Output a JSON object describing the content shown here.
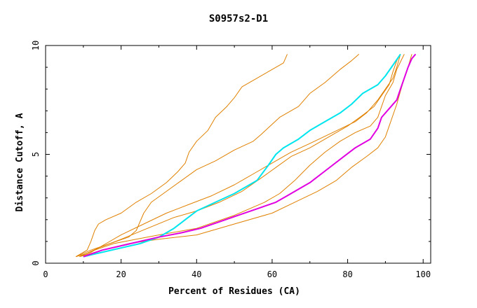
{
  "chart_data": {
    "type": "line",
    "title": "S0957s2-D1",
    "xlabel": "Percent of Residues (CA)",
    "ylabel": "Distance Cutoff, A",
    "xlim": [
      0,
      102
    ],
    "ylim": [
      0,
      10
    ],
    "xticks": [
      0,
      20,
      40,
      60,
      80,
      100
    ],
    "yticks": [
      0,
      5,
      10
    ],
    "colors": {
      "orange": "#e08000",
      "cyan": "#00e5ee",
      "magenta": "#e000e0",
      "axes": "#000000"
    },
    "series": [
      {
        "name": "orange-1",
        "color": "#e08000",
        "width": 1,
        "points": [
          [
            8,
            0.3
          ],
          [
            11,
            0.6
          ],
          [
            12,
            1.0
          ],
          [
            13,
            1.5
          ],
          [
            14,
            1.8
          ],
          [
            16,
            2.0
          ],
          [
            20,
            2.3
          ],
          [
            24,
            2.8
          ],
          [
            28,
            3.2
          ],
          [
            32,
            3.7
          ],
          [
            35,
            4.2
          ],
          [
            37,
            4.6
          ],
          [
            38,
            5.1
          ],
          [
            40,
            5.6
          ],
          [
            43,
            6.1
          ],
          [
            45,
            6.7
          ],
          [
            48,
            7.2
          ],
          [
            50,
            7.6
          ],
          [
            52,
            8.1
          ],
          [
            56,
            8.5
          ],
          [
            59,
            8.8
          ],
          [
            63,
            9.2
          ],
          [
            64,
            9.6
          ]
        ]
      },
      {
        "name": "orange-2",
        "color": "#e08000",
        "width": 1,
        "points": [
          [
            8,
            0.3
          ],
          [
            12,
            0.6
          ],
          [
            17,
            0.9
          ],
          [
            22,
            1.2
          ],
          [
            24,
            1.5
          ],
          [
            26,
            2.3
          ],
          [
            28,
            2.8
          ],
          [
            32,
            3.3
          ],
          [
            36,
            3.8
          ],
          [
            40,
            4.3
          ],
          [
            45,
            4.7
          ],
          [
            50,
            5.2
          ],
          [
            55,
            5.6
          ],
          [
            57,
            5.9
          ],
          [
            62,
            6.7
          ],
          [
            67,
            7.2
          ],
          [
            70,
            7.8
          ],
          [
            74,
            8.3
          ],
          [
            78,
            8.9
          ],
          [
            81,
            9.3
          ],
          [
            83,
            9.6
          ]
        ]
      },
      {
        "name": "orange-3",
        "color": "#e08000",
        "width": 1,
        "points": [
          [
            8,
            0.3
          ],
          [
            12,
            0.5
          ],
          [
            16,
            0.9
          ],
          [
            20,
            1.3
          ],
          [
            26,
            1.8
          ],
          [
            32,
            2.3
          ],
          [
            38,
            2.7
          ],
          [
            44,
            3.1
          ],
          [
            50,
            3.6
          ],
          [
            55,
            4.1
          ],
          [
            60,
            4.6
          ],
          [
            65,
            5.1
          ],
          [
            70,
            5.5
          ],
          [
            76,
            6.0
          ],
          [
            82,
            6.5
          ],
          [
            85,
            6.9
          ],
          [
            88,
            7.5
          ],
          [
            90,
            8.0
          ],
          [
            92,
            8.5
          ],
          [
            93,
            9.0
          ],
          [
            94,
            9.6
          ]
        ]
      },
      {
        "name": "orange-4",
        "color": "#e08000",
        "width": 1,
        "points": [
          [
            9,
            0.3
          ],
          [
            14,
            0.7
          ],
          [
            20,
            1.1
          ],
          [
            27,
            1.6
          ],
          [
            34,
            2.1
          ],
          [
            40,
            2.4
          ],
          [
            46,
            2.8
          ],
          [
            52,
            3.3
          ],
          [
            57,
            3.9
          ],
          [
            61,
            4.4
          ],
          [
            65,
            4.9
          ],
          [
            70,
            5.3
          ],
          [
            75,
            5.8
          ],
          [
            80,
            6.3
          ],
          [
            84,
            6.8
          ],
          [
            87,
            7.2
          ],
          [
            89,
            7.7
          ],
          [
            91,
            8.2
          ],
          [
            92,
            8.8
          ],
          [
            93,
            9.3
          ],
          [
            94,
            9.6
          ]
        ]
      },
      {
        "name": "orange-5",
        "color": "#e08000",
        "width": 1,
        "points": [
          [
            9,
            0.3
          ],
          [
            13,
            0.6
          ],
          [
            18,
            0.9
          ],
          [
            24,
            1.1
          ],
          [
            30,
            1.3
          ],
          [
            40,
            1.6
          ],
          [
            50,
            2.2
          ],
          [
            58,
            2.8
          ],
          [
            62,
            3.2
          ],
          [
            66,
            3.8
          ],
          [
            70,
            4.5
          ],
          [
            74,
            5.1
          ],
          [
            78,
            5.6
          ],
          [
            82,
            6.0
          ],
          [
            86,
            6.3
          ],
          [
            88,
            6.7
          ],
          [
            89,
            7.2
          ],
          [
            90,
            7.7
          ],
          [
            92,
            8.3
          ],
          [
            93,
            8.9
          ],
          [
            95,
            9.6
          ]
        ]
      },
      {
        "name": "orange-6",
        "color": "#e08000",
        "width": 1,
        "points": [
          [
            9,
            0.3
          ],
          [
            15,
            0.6
          ],
          [
            22,
            0.9
          ],
          [
            30,
            1.1
          ],
          [
            40,
            1.3
          ],
          [
            50,
            1.8
          ],
          [
            60,
            2.3
          ],
          [
            66,
            2.8
          ],
          [
            72,
            3.3
          ],
          [
            77,
            3.8
          ],
          [
            81,
            4.4
          ],
          [
            85,
            4.9
          ],
          [
            88,
            5.3
          ],
          [
            90,
            5.8
          ],
          [
            91,
            6.3
          ],
          [
            92,
            6.8
          ],
          [
            93,
            7.3
          ],
          [
            94,
            7.9
          ],
          [
            95,
            8.5
          ],
          [
            96,
            9.0
          ],
          [
            97,
            9.6
          ]
        ]
      },
      {
        "name": "cyan",
        "color": "#00e5ee",
        "width": 2,
        "points": [
          [
            10,
            0.3
          ],
          [
            15,
            0.5
          ],
          [
            20,
            0.7
          ],
          [
            25,
            0.9
          ],
          [
            30,
            1.2
          ],
          [
            34,
            1.6
          ],
          [
            37,
            2.0
          ],
          [
            40,
            2.4
          ],
          [
            45,
            2.8
          ],
          [
            50,
            3.2
          ],
          [
            53,
            3.5
          ],
          [
            56,
            3.8
          ],
          [
            59,
            4.5
          ],
          [
            61,
            5.0
          ],
          [
            63,
            5.3
          ],
          [
            67,
            5.7
          ],
          [
            70,
            6.1
          ],
          [
            74,
            6.5
          ],
          [
            78,
            6.9
          ],
          [
            81,
            7.3
          ],
          [
            84,
            7.8
          ],
          [
            88,
            8.2
          ],
          [
            90,
            8.6
          ],
          [
            92,
            9.1
          ],
          [
            94,
            9.6
          ]
        ]
      },
      {
        "name": "magenta",
        "color": "#e000e0",
        "width": 2,
        "points": [
          [
            10,
            0.3
          ],
          [
            15,
            0.6
          ],
          [
            20,
            0.8
          ],
          [
            25,
            1.0
          ],
          [
            30,
            1.2
          ],
          [
            36,
            1.4
          ],
          [
            41,
            1.6
          ],
          [
            46,
            1.9
          ],
          [
            51,
            2.2
          ],
          [
            56,
            2.5
          ],
          [
            61,
            2.8
          ],
          [
            64,
            3.1
          ],
          [
            67,
            3.4
          ],
          [
            70,
            3.7
          ],
          [
            73,
            4.1
          ],
          [
            76,
            4.5
          ],
          [
            79,
            4.9
          ],
          [
            82,
            5.3
          ],
          [
            86,
            5.7
          ],
          [
            88,
            6.2
          ],
          [
            89,
            6.7
          ],
          [
            91,
            7.1
          ],
          [
            93,
            7.5
          ],
          [
            94,
            8.0
          ],
          [
            95,
            8.5
          ],
          [
            96,
            9.0
          ],
          [
            97,
            9.4
          ],
          [
            98,
            9.6
          ]
        ]
      }
    ]
  }
}
